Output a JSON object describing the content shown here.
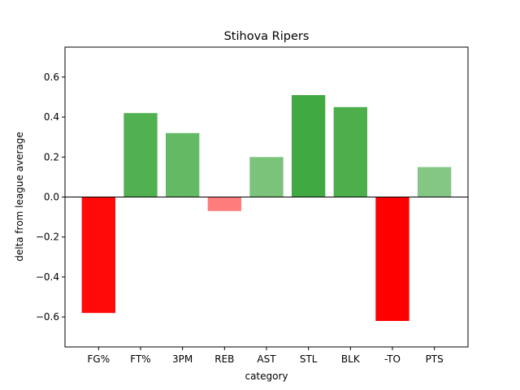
{
  "chart_data": {
    "type": "bar",
    "title": "Stihova Ripers",
    "xlabel": "category",
    "ylabel": "delta from league average",
    "categories": [
      "FG%",
      "FT%",
      "3PM",
      "REB",
      "AST",
      "STL",
      "BLK",
      "-TO",
      "PTS"
    ],
    "values": [
      -0.58,
      0.42,
      0.32,
      -0.07,
      0.2,
      0.51,
      0.45,
      -0.62,
      0.15
    ],
    "ylim": [
      -0.75,
      0.75
    ],
    "yticks": [
      -0.6,
      -0.4,
      -0.2,
      0.0,
      0.2,
      0.4,
      0.6
    ],
    "ytick_labels": [
      "−0.6",
      "−0.4",
      "−0.2",
      "0.0",
      "0.2",
      "0.4",
      "0.6"
    ],
    "grid": false,
    "legend": "none",
    "zero_line": true,
    "colors": {
      "positive": "#2ca02c",
      "negative": "#ff0000"
    }
  }
}
